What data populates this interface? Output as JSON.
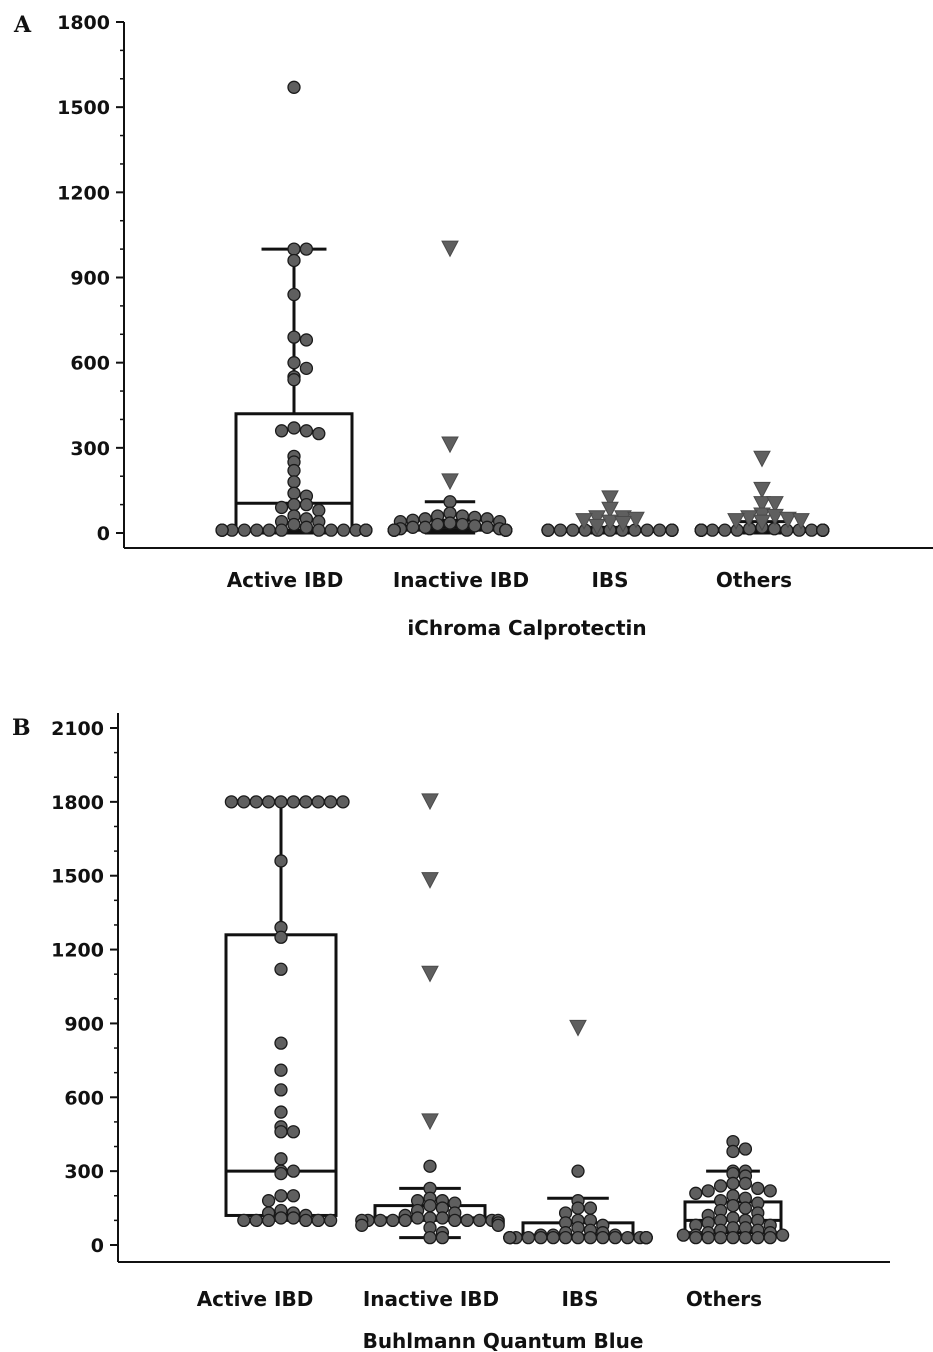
{
  "chart_data": [
    {
      "panel": "A",
      "type": "box",
      "xlabel": "iChroma Calprotectin",
      "ylabel": "",
      "categories": [
        "Active IBD",
        "Inactive IBD",
        "IBS",
        "Others"
      ],
      "ylim": [
        0,
        1800
      ],
      "yticks": [
        0,
        300,
        600,
        900,
        1200,
        1500,
        1800
      ],
      "grid": false,
      "marker_color": "#5f5f5f",
      "boxes": [
        {
          "q1": 10,
          "median": 105,
          "q3": 420,
          "whisker_low": 0,
          "whisker_high": 1000
        },
        {
          "q1": 10,
          "median": 20,
          "q3": 45,
          "whisker_low": 0,
          "whisker_high": 110
        },
        {
          "q1": 5,
          "median": 8,
          "q3": 12,
          "whisker_low": 0,
          "whisker_high": 20
        },
        {
          "q1": 5,
          "median": 10,
          "q3": 15,
          "whisker_low": 0,
          "whisker_high": 40
        }
      ],
      "points": [
        [
          1570,
          1000,
          1000,
          960,
          840,
          690,
          680,
          600,
          580,
          550,
          540,
          370,
          360,
          360,
          350,
          270,
          250,
          220,
          180,
          140,
          130,
          100,
          100,
          90,
          80,
          60,
          50,
          40,
          40,
          30,
          20,
          10,
          10,
          10,
          10,
          10,
          10,
          10,
          10,
          10,
          10,
          10,
          10,
          10,
          10,
          10
        ],
        [
          110,
          70,
          60,
          60,
          55,
          50,
          50,
          45,
          40,
          40,
          35,
          30,
          30,
          25,
          20,
          20,
          20,
          15,
          15,
          10,
          10,
          10,
          10,
          10,
          10,
          10,
          10,
          10,
          10,
          10,
          10,
          10
        ],
        [
          10,
          10,
          10,
          10,
          10,
          10,
          10,
          10,
          10,
          10,
          10,
          10,
          10,
          10,
          10,
          10
        ],
        [
          20,
          15,
          15,
          10,
          10,
          10,
          10,
          10,
          10,
          10,
          10,
          10,
          10,
          10,
          10,
          10,
          10,
          10,
          10,
          10,
          10,
          10,
          10,
          10
        ]
      ],
      "outliers": [
        [],
        [
          1000,
          310,
          180
        ],
        [
          120,
          80,
          50,
          50,
          45,
          40,
          35,
          30,
          20
        ],
        [
          260,
          150,
          100,
          100,
          60,
          55,
          50,
          45,
          40,
          40,
          35
        ]
      ]
    },
    {
      "panel": "B",
      "type": "box",
      "xlabel": "Buhlmann Quantum Blue",
      "ylabel": "",
      "categories": [
        "Active IBD",
        "Inactive IBD",
        "IBS",
        "Others"
      ],
      "ylim": [
        0,
        2100
      ],
      "yticks": [
        0,
        300,
        600,
        900,
        1200,
        1500,
        1800,
        2100
      ],
      "grid": false,
      "marker_color": "#5f5f5f",
      "boxes": [
        {
          "q1": 120,
          "median": 300,
          "q3": 1260,
          "whisker_low": 100,
          "whisker_high": 1800
        },
        {
          "q1": 100,
          "median": 110,
          "q3": 160,
          "whisker_low": 30,
          "whisker_high": 230
        },
        {
          "q1": 30,
          "median": 40,
          "q3": 90,
          "whisker_low": 30,
          "whisker_high": 190
        },
        {
          "q1": 50,
          "median": 100,
          "q3": 175,
          "whisker_low": 30,
          "whisker_high": 300
        }
      ],
      "points": [
        [
          1800,
          1800,
          1800,
          1800,
          1800,
          1800,
          1800,
          1800,
          1800,
          1800,
          1560,
          1290,
          1250,
          1120,
          820,
          710,
          630,
          540,
          480,
          460,
          460,
          350,
          300,
          300,
          290,
          200,
          200,
          180,
          140,
          130,
          130,
          120,
          110,
          110,
          100,
          100,
          100,
          100,
          100,
          100
        ],
        [
          320,
          230,
          190,
          180,
          180,
          170,
          160,
          150,
          140,
          130,
          120,
          110,
          110,
          110,
          100,
          100,
          100,
          100,
          100,
          100,
          100,
          100,
          100,
          100,
          90,
          80,
          80,
          70,
          50,
          30,
          30
        ],
        [
          300,
          180,
          150,
          150,
          130,
          100,
          100,
          90,
          80,
          70,
          60,
          50,
          50,
          40,
          40,
          40,
          30,
          30,
          30,
          30,
          30,
          30,
          30,
          30,
          30,
          30,
          30,
          30,
          30,
          30,
          30,
          30,
          30
        ],
        [
          420,
          390,
          380,
          300,
          300,
          290,
          280,
          250,
          250,
          240,
          230,
          220,
          220,
          210,
          200,
          190,
          180,
          170,
          160,
          150,
          140,
          130,
          120,
          110,
          100,
          100,
          100,
          90,
          80,
          80,
          70,
          70,
          60,
          60,
          50,
          50,
          40,
          40,
          40,
          30,
          30,
          30,
          30,
          30,
          30,
          30
        ]
      ],
      "outliers": [
        [],
        [
          1800,
          1480,
          1100,
          500
        ],
        [
          880
        ],
        []
      ]
    }
  ],
  "panels": [
    {
      "letter": "A"
    },
    {
      "letter": "B"
    }
  ]
}
